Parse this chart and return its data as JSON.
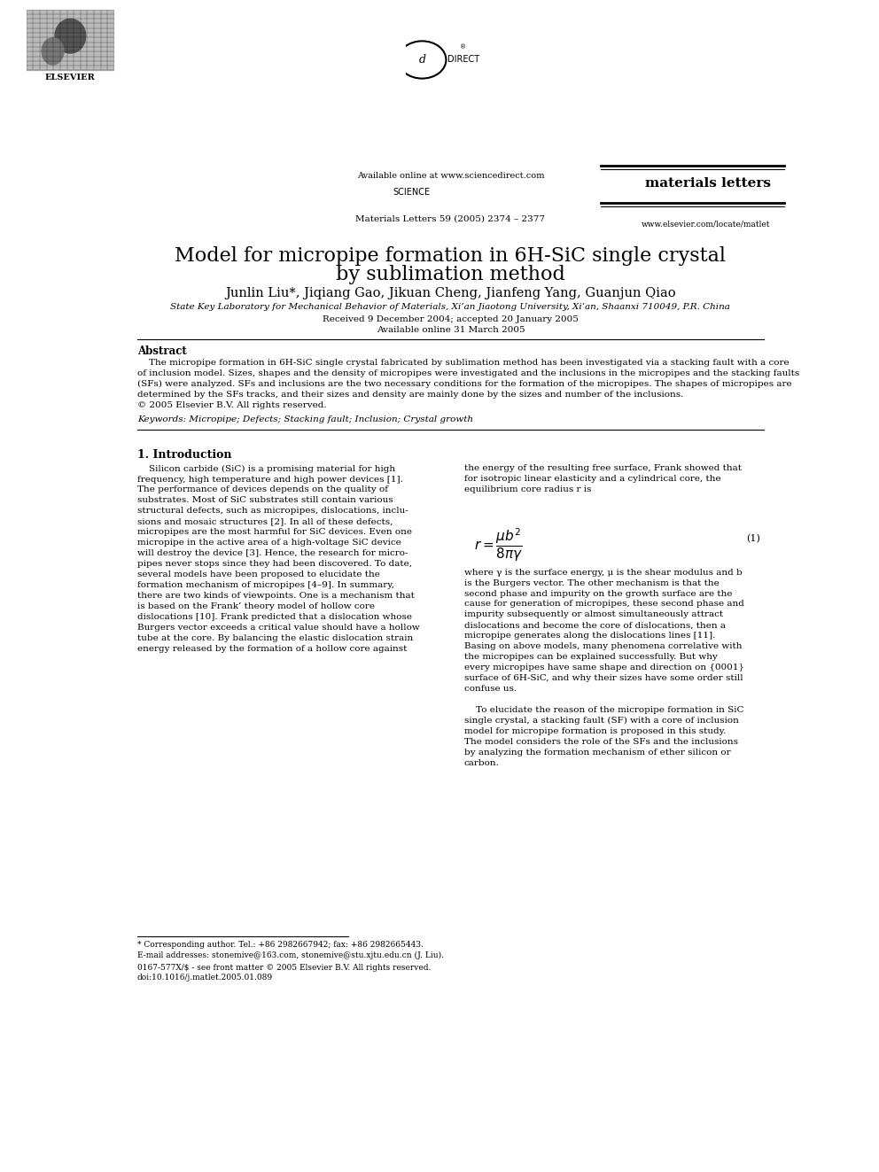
{
  "page_width": 9.92,
  "page_height": 13.23,
  "background": "#ffffff",
  "header": {
    "available_online": "Available online at www.sciencedirect.com",
    "journal_name": "materials letters",
    "citation": "Materials Letters 59 (2005) 2374 – 2377",
    "url": "www.elsevier.com/locate/matlet"
  },
  "title_line1": "Model for micropipe formation in 6H-SiC single crystal",
  "title_line2": "by sublimation method",
  "authors": "Junlin Liu*, Jiqiang Gao, Jikuan Cheng, Jianfeng Yang, Guanjun Qiao",
  "affiliation": "State Key Laboratory for Mechanical Behavior of Materials, Xi’an Jiaotong University, Xi’an, Shaanxi 710049, P.R. China",
  "received": "Received 9 December 2004; accepted 20 January 2005",
  "available_online_date": "Available online 31 March 2005",
  "abstract_title": "Abstract",
  "keywords": "Keywords: Micropipe; Defects; Stacking fault; Inclusion; Crystal growth",
  "section1_title": "1. Introduction",
  "equation_number": "(1)",
  "footnote_contact": "* Corresponding author. Tel.: +86 2982667942; fax: +86 2982665443.",
  "footnote_email": "E-mail addresses: stonemive@163.com, stonemive@stu.xjtu.edu.cn (J. Liu).",
  "footnote_issn": "0167-577X/$ - see front matter © 2005 Elsevier B.V. All rights reserved.",
  "footnote_doi": "doi:10.1016/j.matlet.2005.01.089"
}
